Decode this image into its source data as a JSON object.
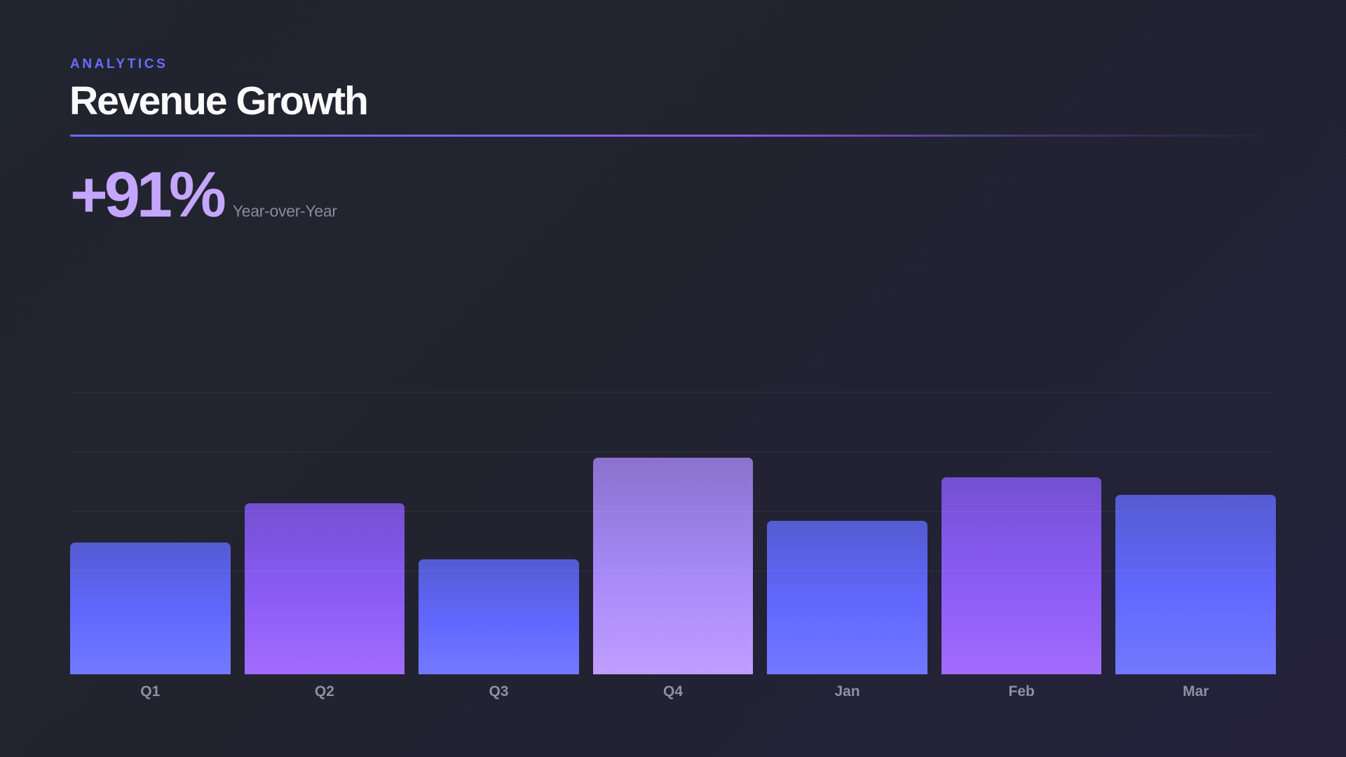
{
  "header": {
    "eyebrow": "ANALYTICS",
    "title": "Revenue Growth"
  },
  "kpi": {
    "value": "+91%",
    "label": "Year-over-Year"
  },
  "colors": {
    "background_start": "#21252f",
    "background_end": "#25213c",
    "accent_indigo": "#6b6cff",
    "accent_purple": "#8b5cf6",
    "accent_lavender": "#c4a6ff",
    "title": "#fafafa",
    "muted_text": "#8f8fa2"
  },
  "chart_data": {
    "type": "bar",
    "title": "Revenue Growth",
    "subtitle": "+91% Year-over-Year",
    "xlabel": "",
    "ylabel": "",
    "categories": [
      "Q1",
      "Q2",
      "Q3",
      "Q4",
      "Jan",
      "Feb",
      "Mar"
    ],
    "values": [
      61,
      79,
      53,
      100,
      71,
      91,
      83
    ],
    "value_units": "relative (Q4 = 100), no axis ticks shown",
    "bar_styles": [
      "indigo",
      "purple",
      "indigo",
      "lavender",
      "indigo",
      "purple",
      "indigo"
    ],
    "ylim": [
      0,
      158
    ],
    "grid": true,
    "gridline_values": [
      27.5,
      55,
      82.5,
      110
    ],
    "legend": null
  }
}
